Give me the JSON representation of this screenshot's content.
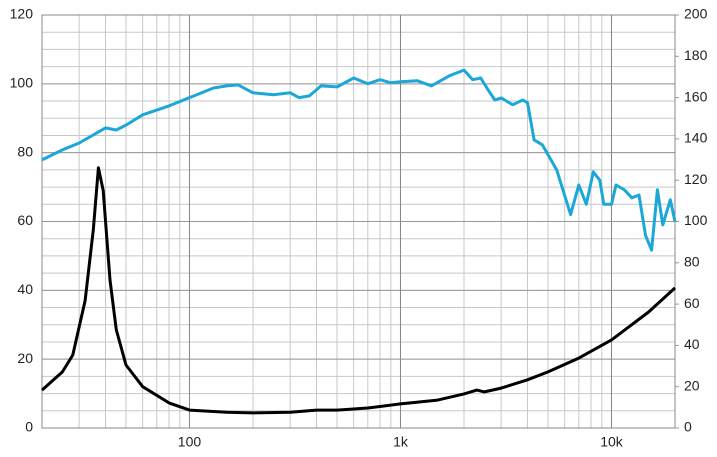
{
  "chart_data": {
    "type": "line",
    "log_x": true,
    "grid": true,
    "xlim": [
      20,
      20000
    ],
    "xticks": [
      100,
      {
        "value": 1000,
        "label": "1k"
      },
      {
        "value": 10000,
        "label": "10k"
      }
    ],
    "ylim": [
      0,
      120
    ],
    "yticks": [
      0,
      20,
      40,
      60,
      80,
      100,
      120
    ],
    "y2lim": [
      0,
      200
    ],
    "y2ticks": [
      0,
      20,
      40,
      60,
      80,
      100,
      120,
      140,
      160,
      180,
      200
    ],
    "series": [
      {
        "color": "#1ba7d8",
        "x": [
          20,
          25,
          30,
          40,
          45,
          50,
          60,
          80,
          100,
          130,
          150,
          170,
          200,
          250,
          300,
          330,
          370,
          420,
          500,
          600,
          700,
          800,
          900,
          1000,
          1200,
          1400,
          1700,
          2000,
          2200,
          2400,
          2600,
          2800,
          3000,
          3400,
          3800,
          4000,
          4300,
          4700,
          5500,
          6400,
          7000,
          7600,
          8200,
          8800,
          9200,
          10000,
          10500,
          11500,
          12500,
          13500,
          14500,
          15500,
          16500,
          17500,
          19000,
          20000
        ],
        "values": [
          77.9,
          80.8,
          82.8,
          87.2,
          86.6,
          88,
          91,
          93.6,
          96,
          98.8,
          99.4,
          99.7,
          97.4,
          96.8,
          97.4,
          96,
          96.5,
          99.4,
          99.1,
          101.7,
          100,
          101.2,
          100.3,
          100.6,
          100.9,
          99.4,
          102.3,
          104,
          101.2,
          101.7,
          98.3,
          95.3,
          95.9,
          93.9,
          95.3,
          94.5,
          83.7,
          82.3,
          75,
          62,
          70.6,
          65,
          74.4,
          72,
          65,
          65,
          70.6,
          69.2,
          66.9,
          67.7,
          56,
          51.7,
          69.2,
          59,
          66.3,
          60
        ]
      },
      {
        "color": "#000000",
        "x": [
          20,
          25,
          28,
          32,
          35,
          37,
          39,
          42,
          45,
          50,
          60,
          80,
          100,
          150,
          200,
          300,
          400,
          500,
          700,
          1000,
          1500,
          2000,
          2300,
          2500,
          3000,
          4000,
          5000,
          7000,
          10000,
          15000,
          20000
        ],
        "values": [
          11,
          16.3,
          21.2,
          37,
          57.6,
          75.6,
          69,
          43,
          28.5,
          18.3,
          12,
          7.3,
          5.2,
          4.6,
          4.4,
          4.6,
          5.2,
          5.2,
          5.8,
          7,
          8.1,
          9.9,
          11,
          10.5,
          11.6,
          14,
          16.3,
          20.3,
          25.6,
          33.7,
          40.7
        ]
      }
    ]
  }
}
